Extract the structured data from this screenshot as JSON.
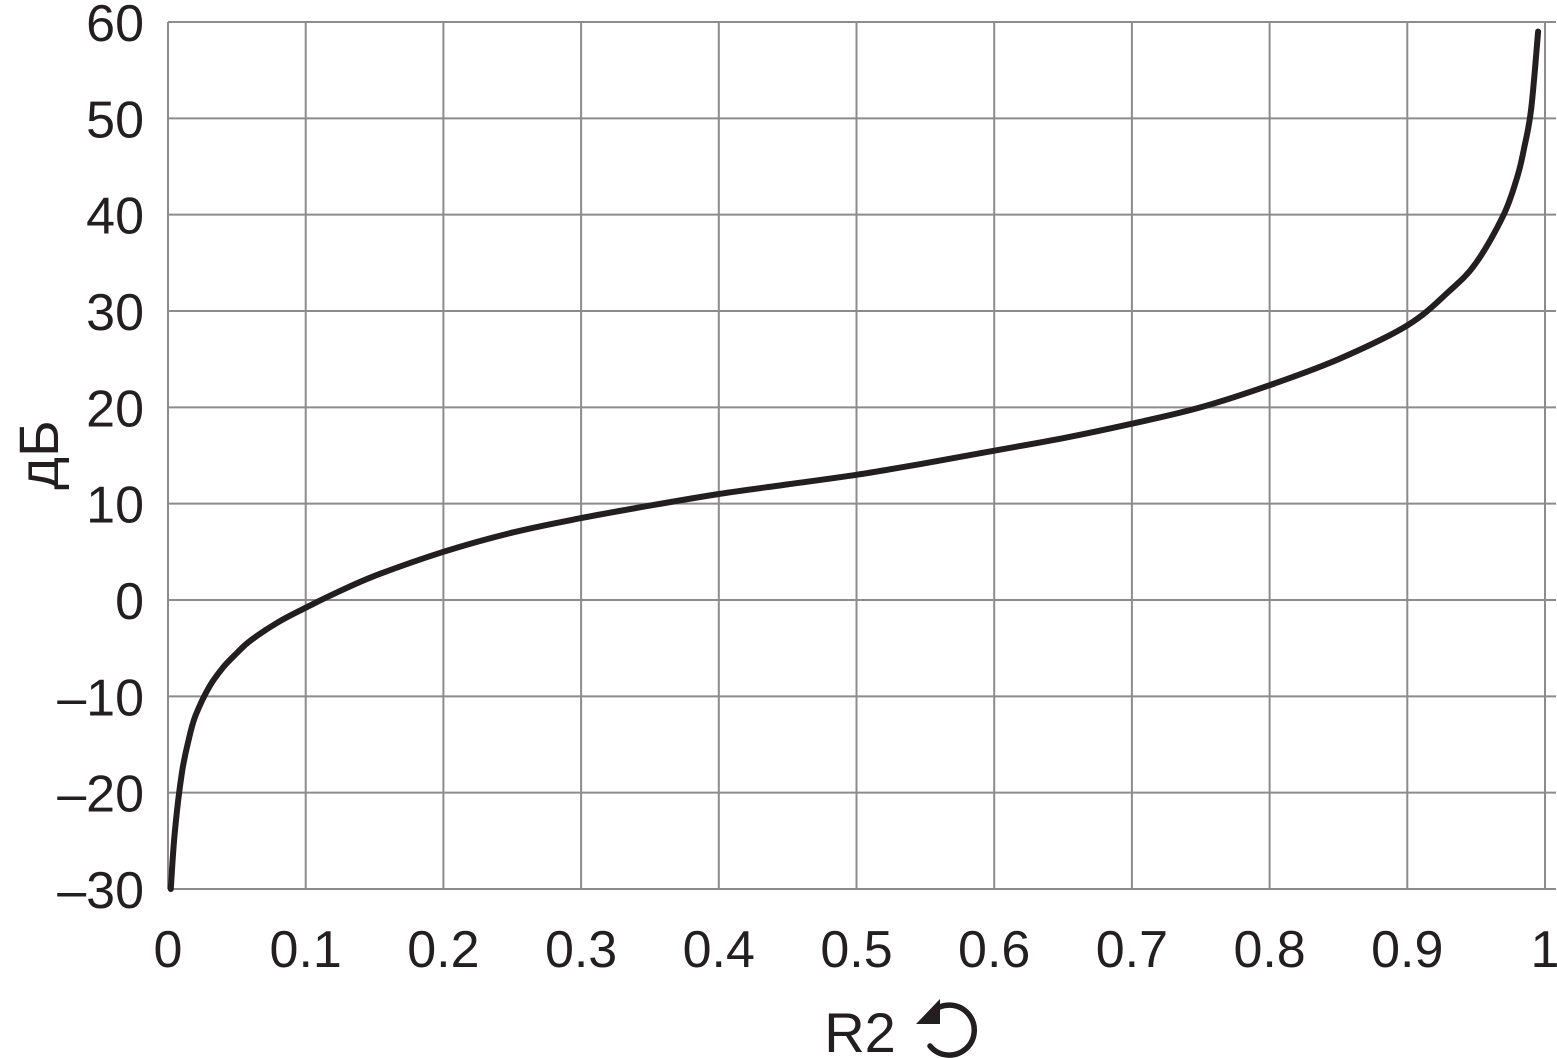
{
  "chart_data": {
    "type": "line",
    "title": "",
    "xlabel": "R2",
    "ylabel": "дБ",
    "xlim": [
      0,
      1
    ],
    "ylim": [
      -30,
      60
    ],
    "grid": true,
    "x_ticks": [
      "0",
      "0.1",
      "0.2",
      "0.3",
      "0.4",
      "0.5",
      "0.6",
      "0.7",
      "0.8",
      "0.9",
      "1"
    ],
    "y_ticks": [
      "–30",
      "–20",
      "–10",
      "0",
      "10",
      "20",
      "30",
      "40",
      "50",
      "60"
    ],
    "xlabel_icon": "counterclockwise-rotation-icon",
    "colors": {
      "line": "#231f20",
      "grid": "#8c8c8c",
      "text": "#231f20"
    },
    "series": [
      {
        "x": [
          0.002,
          0.005,
          0.01,
          0.015,
          0.02,
          0.03,
          0.04,
          0.05,
          0.06,
          0.08,
          0.1,
          0.12,
          0.15,
          0.2,
          0.25,
          0.3,
          0.35,
          0.4,
          0.45,
          0.5,
          0.55,
          0.6,
          0.65,
          0.7,
          0.75,
          0.8,
          0.85,
          0.9,
          0.93,
          0.95,
          0.97,
          0.98,
          0.985,
          0.99,
          0.995
        ],
        "y": [
          -30,
          -24,
          -18,
          -14.5,
          -12,
          -9,
          -7,
          -5.5,
          -4.2,
          -2.3,
          -0.8,
          0.6,
          2.5,
          5,
          7,
          8.5,
          9.8,
          11,
          12,
          13,
          14.2,
          15.5,
          16.8,
          18.3,
          20,
          22.3,
          25,
          28.5,
          32,
          35,
          40,
          44,
          47,
          51,
          59
        ]
      }
    ]
  }
}
